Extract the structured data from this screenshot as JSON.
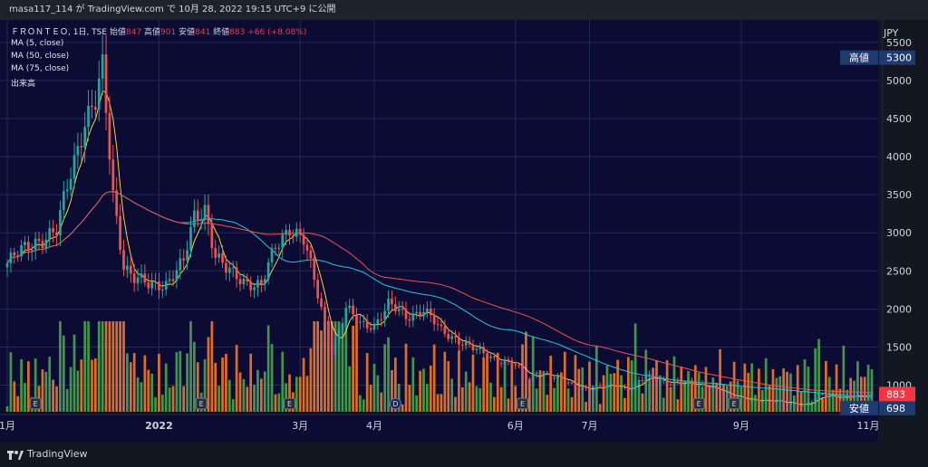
{
  "header": {
    "attribution": "masa117_114 が TradingView.com で 10月 28, 2022 19:15 UTC+9 に公開"
  },
  "legend": {
    "symbol": "ＦＲＯＮＴＥＯ, 1日, TSE",
    "open_label": "始値",
    "open": "847",
    "high_label": "高値",
    "high": "901",
    "low_label": "安値",
    "low": "841",
    "close_label": "終値",
    "close": "883",
    "change": "+66 (+8.08%)",
    "indicators": [
      "MA (5, close)",
      "MA (50, close)",
      "MA (75, close)",
      "出来高"
    ]
  },
  "footer": {
    "brand": "TradingView"
  },
  "colors": {
    "background": "#0b0b33",
    "up": "#26a69a",
    "down": "#ef5350",
    "ma5": "#f5d142",
    "ma50": "#26c6da",
    "ma75": "#ef5350",
    "vol_up": "#4caf50",
    "vol_down": "#ff7f27"
  },
  "chart_data": {
    "type": "candlestick",
    "currency": "JPY",
    "y_ticks": [
      1000,
      1500,
      2000,
      2500,
      3000,
      3500,
      4000,
      4500,
      5000,
      5500
    ],
    "ylim": [
      650,
      5700
    ],
    "x_ticks": [
      "1月",
      "2022",
      "3月",
      "4月",
      "6月",
      "7月",
      "9月",
      "11月"
    ],
    "markers": [
      {
        "label": "高値",
        "value": "5300"
      },
      {
        "label": "安値",
        "value": "698"
      },
      {
        "label": "",
        "value": "883"
      }
    ],
    "event_badges": [
      "E",
      "E",
      "E",
      "D",
      "E",
      "E",
      "E"
    ],
    "key_points": [
      {
        "index": 0,
        "price": 2600
      },
      {
        "index": 8,
        "price": 2900
      },
      {
        "index": 14,
        "price": 3000
      },
      {
        "index": 18,
        "price": 3800
      },
      {
        "index": 22,
        "price": 4500
      },
      {
        "index": 25,
        "price": 4700
      },
      {
        "index": 27,
        "price": 5100
      },
      {
        "index": 30,
        "price": 3500
      },
      {
        "index": 33,
        "price": 2600
      },
      {
        "index": 36,
        "price": 2400
      },
      {
        "index": 40,
        "price": 2300
      },
      {
        "index": 45,
        "price": 2350
      },
      {
        "index": 50,
        "price": 2600
      },
      {
        "index": 53,
        "price": 3200
      },
      {
        "index": 56,
        "price": 3350
      },
      {
        "index": 59,
        "price": 2700
      },
      {
        "index": 62,
        "price": 2500
      },
      {
        "index": 66,
        "price": 2400
      },
      {
        "index": 72,
        "price": 2300
      },
      {
        "index": 76,
        "price": 2800
      },
      {
        "index": 80,
        "price": 3100
      },
      {
        "index": 84,
        "price": 2900
      },
      {
        "index": 89,
        "price": 2000
      },
      {
        "index": 92,
        "price": 1450
      },
      {
        "index": 96,
        "price": 2000
      },
      {
        "index": 100,
        "price": 1800
      },
      {
        "index": 104,
        "price": 1800
      },
      {
        "index": 108,
        "price": 2050
      },
      {
        "index": 113,
        "price": 1900
      },
      {
        "index": 118,
        "price": 2000
      },
      {
        "index": 123,
        "price": 1700
      },
      {
        "index": 128,
        "price": 1600
      },
      {
        "index": 133,
        "price": 1450
      },
      {
        "index": 138,
        "price": 1350
      },
      {
        "index": 143,
        "price": 1300
      },
      {
        "index": 148,
        "price": 1050
      },
      {
        "index": 150,
        "price": 1200
      },
      {
        "index": 155,
        "price": 1100
      },
      {
        "index": 160,
        "price": 1000
      },
      {
        "index": 166,
        "price": 950
      },
      {
        "index": 172,
        "price": 1000
      },
      {
        "index": 176,
        "price": 950
      },
      {
        "index": 181,
        "price": 1100
      },
      {
        "index": 187,
        "price": 1050
      },
      {
        "index": 193,
        "price": 1000
      },
      {
        "index": 199,
        "price": 1000
      },
      {
        "index": 204,
        "price": 850
      },
      {
        "index": 210,
        "price": 820
      },
      {
        "index": 216,
        "price": 780
      },
      {
        "index": 221,
        "price": 780
      },
      {
        "index": 226,
        "price": 730
      },
      {
        "index": 231,
        "price": 880
      },
      {
        "index": 236,
        "price": 840
      },
      {
        "index": 242,
        "price": 850
      },
      {
        "index": 245,
        "price": 883
      }
    ],
    "x_tick_indices": [
      0,
      43,
      83,
      104,
      144,
      165,
      208,
      248
    ]
  }
}
